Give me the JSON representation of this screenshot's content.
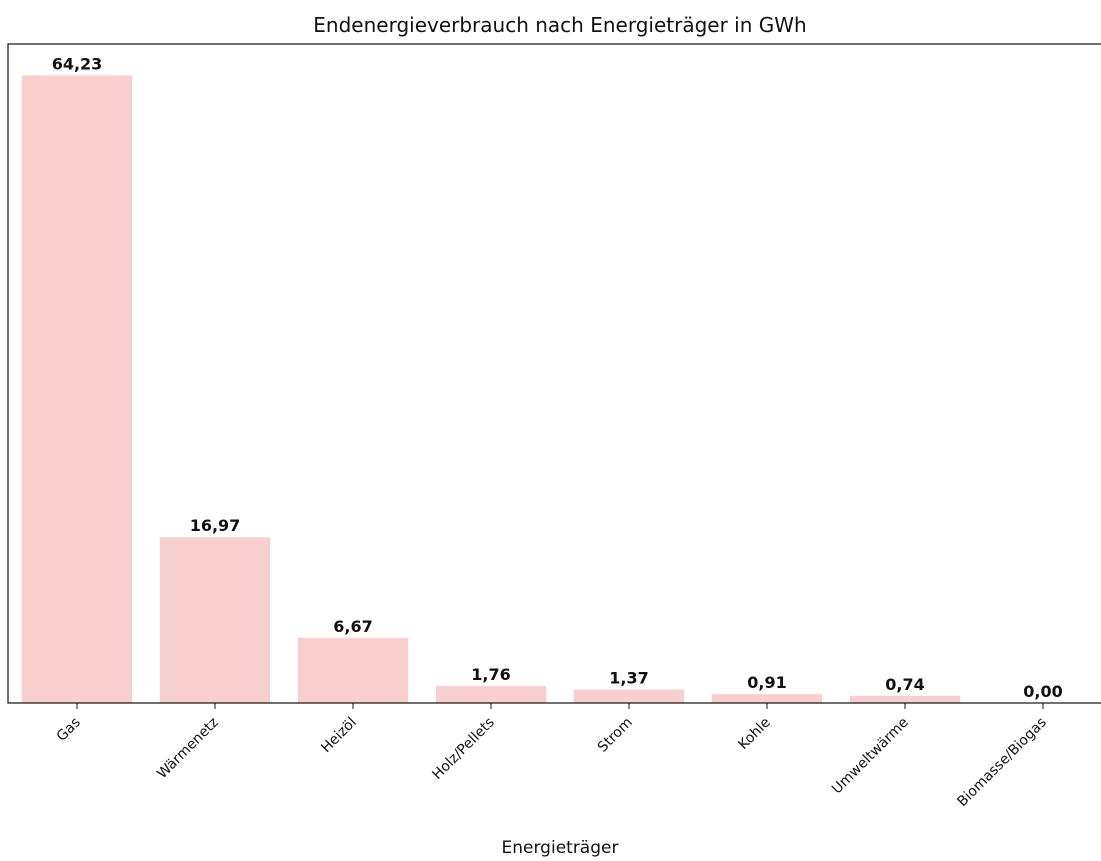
{
  "chart_data": {
    "type": "bar",
    "title": "Endenergieverbrauch nach Energieträger in GWh",
    "xlabel": "Energieträger",
    "categories": [
      "Gas",
      "Wärmenetz",
      "Heizöl",
      "Holz/Pellets",
      "Strom",
      "Kohle",
      "Umweltwärme",
      "Biomasse/Biogas"
    ],
    "values": [
      64.23,
      16.97,
      6.67,
      1.76,
      1.37,
      0.91,
      0.74,
      0.0
    ],
    "value_labels": [
      "64,23",
      "16,97",
      "6,67",
      "1,76",
      "1,37",
      "0,91",
      "0,74",
      "0,00"
    ],
    "color": "#f7cfcf",
    "ylim": [
      0,
      67.44
    ]
  }
}
